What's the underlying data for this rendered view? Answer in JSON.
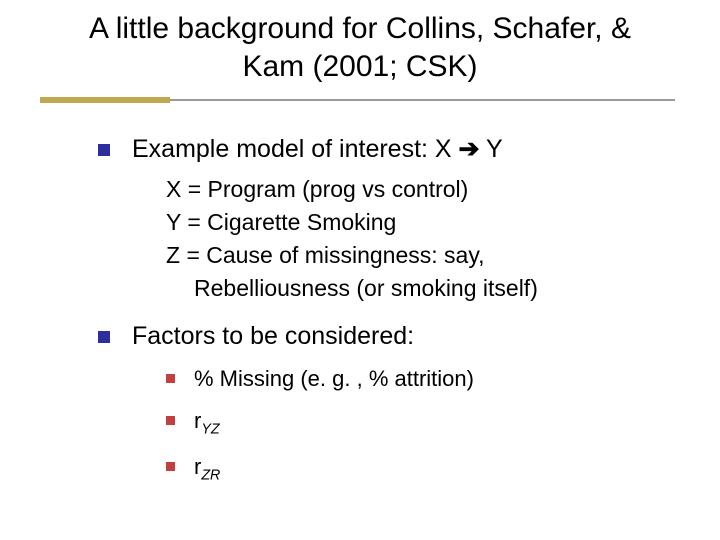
{
  "title": "A little background for Collins, Schafer, & Kam (2001; CSK)",
  "colors": {
    "bullet1": "#2d2d9e",
    "bullet2": "#c04040",
    "underline_tan": "#c0a850",
    "underline_gray": "#9a9a9a",
    "background": "#ffffff",
    "text": "#000000"
  },
  "items": [
    {
      "level": 1,
      "prefix": "Example model of interest:  X ",
      "arrow": "➔",
      "suffix": " Y"
    },
    {
      "level": "1nb",
      "text": "X = Program (prog vs control)"
    },
    {
      "level": "1nb",
      "text": "Y = Cigarette Smoking"
    },
    {
      "level": "1nb",
      "text": "Z = Cause of missingness:  say,"
    },
    {
      "level": "1nbi",
      "text": "Rebelliousness (or smoking itself)"
    },
    {
      "level": 1,
      "text": "Factors to be considered:"
    },
    {
      "level": 2,
      "text": "% Missing (e. g. , % attrition)"
    },
    {
      "level": 2,
      "r_base": "r",
      "r_sub": "YZ"
    },
    {
      "level": 2,
      "r_base": "r",
      "r_sub": "ZR"
    }
  ]
}
